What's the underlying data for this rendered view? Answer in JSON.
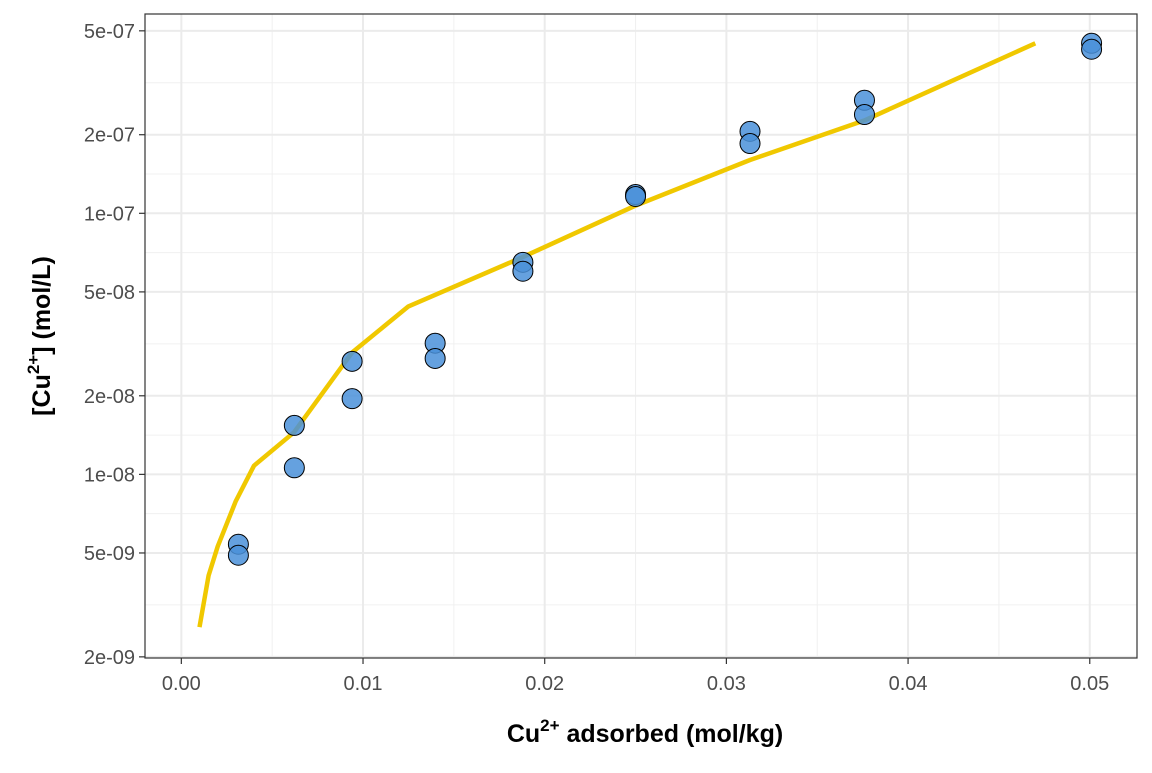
{
  "chart_data": {
    "type": "scatter",
    "xlabel": {
      "pre": "Cu",
      "sup": "2+",
      "post": " adsorbed (mol/kg)"
    },
    "ylabel": {
      "pre": "[Cu",
      "sup": "2+",
      "post": "] (mol/L)"
    },
    "x_scale": "linear",
    "y_scale": "log10",
    "xlim": [
      -0.002,
      0.0526
    ],
    "ylim": [
      1.98e-09,
      5.8e-07
    ],
    "x_ticks": [
      0.0,
      0.01,
      0.02,
      0.03,
      0.04,
      0.05
    ],
    "x_tick_labels": [
      "0.00",
      "0.01",
      "0.02",
      "0.03",
      "0.04",
      "0.05"
    ],
    "y_ticks": [
      2e-09,
      5e-09,
      1e-08,
      2e-08,
      5e-08,
      1e-07,
      2e-07,
      5e-07
    ],
    "y_tick_labels": [
      "2e-09",
      "5e-09",
      "1e-08",
      "2e-08",
      "5e-08",
      "1e-07",
      "2e-07",
      "5e-07"
    ],
    "grid": true,
    "legend": "none",
    "colors": {
      "points": "#4a90d9",
      "point_stroke": "#000000",
      "curve": "#f0c800"
    },
    "series": [
      {
        "kind": "points",
        "x": [
          0.00314,
          0.00314,
          0.00622,
          0.00622,
          0.0094,
          0.0094,
          0.01397,
          0.01397,
          0.0188,
          0.0188,
          0.025,
          0.025,
          0.0313,
          0.0313,
          0.0376,
          0.0376,
          0.0501,
          0.0501
        ],
        "y": [
          5.4e-09,
          4.9e-09,
          1.54e-08,
          1.06e-08,
          2.71e-08,
          1.95e-08,
          3.18e-08,
          2.78e-08,
          6.49e-08,
          6e-08,
          1.18e-07,
          1.16e-07,
          2.06e-07,
          1.85e-07,
          2.71e-07,
          2.39e-07,
          4.48e-07,
          4.25e-07
        ]
      },
      {
        "kind": "line",
        "x": [
          0.001,
          0.0015,
          0.002,
          0.003,
          0.004,
          0.0062,
          0.0094,
          0.0125,
          0.0188,
          0.025,
          0.0313,
          0.0376,
          0.042,
          0.047
        ],
        "y": [
          2.6e-09,
          4.1e-09,
          5.3e-09,
          7.9e-09,
          1.08e-08,
          1.45e-08,
          2.93e-08,
          4.4e-08,
          6.8e-08,
          1.07e-07,
          1.6e-07,
          2.27e-07,
          3.12e-07,
          4.48e-07
        ]
      }
    ]
  }
}
